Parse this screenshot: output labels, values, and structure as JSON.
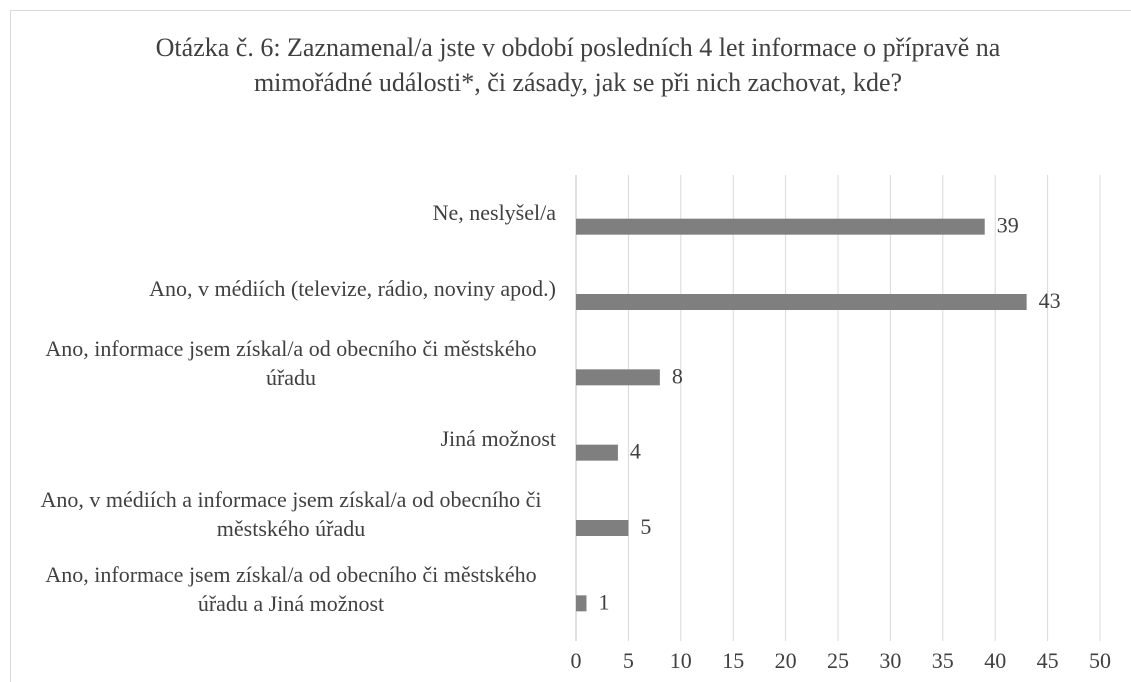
{
  "chart_data": {
    "type": "barh",
    "title": "Otázka č. 6: Zaznamenal/a jste v období posledních 4 let informace o přípravě na mimořádné události*, či zásady, jak se při nich zachovat, kde?",
    "categories": [
      "Ne, neslyšel/a",
      "Ano, v médiích (televize, rádio, noviny apod.)",
      "Ano, informace jsem získal/a od obecního či městského úřadu",
      "Jiná možnost",
      "Ano, v médiích a informace jsem získal/a od obecního či městského úřadu",
      "Ano, informace jsem získal/a od obecního či městského úřadu a Jiná možnost"
    ],
    "values": [
      39,
      43,
      8,
      4,
      5,
      1
    ],
    "color": "#7f7f7f",
    "xlim": [
      0,
      50
    ],
    "xticks": [
      0,
      5,
      10,
      15,
      20,
      25,
      30,
      35,
      40,
      45,
      50
    ],
    "grid": true
  }
}
